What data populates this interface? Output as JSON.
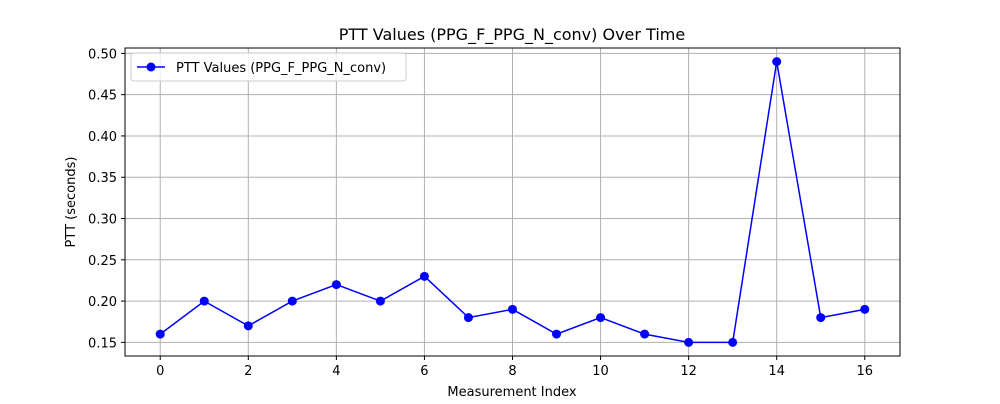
{
  "chart_data": {
    "type": "line",
    "title": "PTT Values (PPG_F_PPG_N_conv) Over Time",
    "xlabel": "Measurement Index",
    "ylabel": "PTT (seconds)",
    "x": [
      0,
      1,
      2,
      3,
      4,
      5,
      6,
      7,
      8,
      9,
      10,
      11,
      12,
      13,
      14,
      15,
      16
    ],
    "series": [
      {
        "name": "PTT Values (PPG_F_PPG_N_conv)",
        "values": [
          0.16,
          0.2,
          0.17,
          0.2,
          0.22,
          0.2,
          0.23,
          0.18,
          0.19,
          0.16,
          0.18,
          0.16,
          0.15,
          0.15,
          0.49,
          0.18,
          0.19
        ],
        "color": "#0000ff",
        "marker": "circle"
      }
    ],
    "xlim": [
      -0.8,
      16.8
    ],
    "ylim": [
      0.1335,
      0.5065
    ],
    "xticks": [
      0,
      2,
      4,
      6,
      8,
      10,
      12,
      14,
      16
    ],
    "xtick_labels": [
      "0",
      "2",
      "4",
      "6",
      "8",
      "10",
      "12",
      "14",
      "16"
    ],
    "yticks": [
      0.15,
      0.2,
      0.25,
      0.3,
      0.35,
      0.4,
      0.45,
      0.5
    ],
    "ytick_labels": [
      "0.15",
      "0.20",
      "0.25",
      "0.30",
      "0.35",
      "0.40",
      "0.45",
      "0.50"
    ],
    "grid": true,
    "legend_position": "top-left"
  }
}
